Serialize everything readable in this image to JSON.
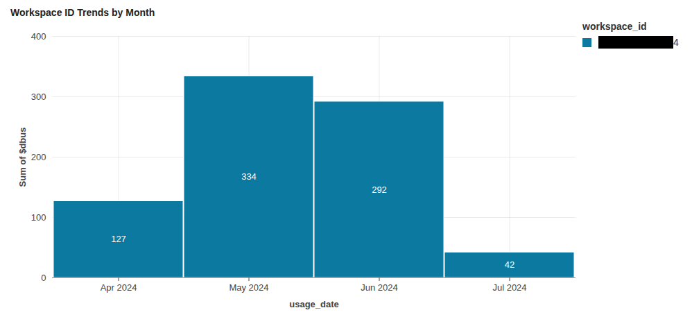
{
  "chart_data": {
    "type": "bar",
    "title": "Workspace ID Trends by Month",
    "xlabel": "usage_date",
    "ylabel": "Sum of $dbus",
    "categories": [
      "Apr 2024",
      "May 2024",
      "Jun 2024",
      "Jul 2024"
    ],
    "legend_title": "workspace_id",
    "series": [
      {
        "name": "4",
        "color": "#0b79a0",
        "values": [
          127,
          334,
          292,
          42
        ]
      }
    ],
    "ylim": [
      0,
      400
    ],
    "yticks": [
      0,
      100,
      200,
      300,
      400
    ],
    "grid": true,
    "data_labels": true,
    "legend": "top-right"
  }
}
